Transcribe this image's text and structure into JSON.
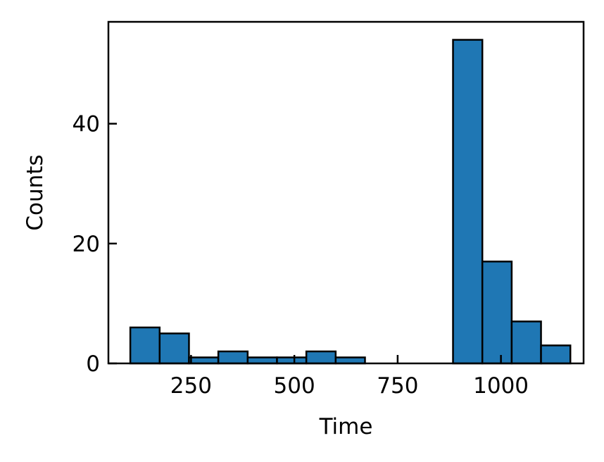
{
  "chart_data": {
    "type": "bar",
    "subtype": "histogram",
    "title": "",
    "xlabel": "Time",
    "ylabel": "Counts",
    "xlim": [
      50,
      1200
    ],
    "ylim": [
      0,
      57
    ],
    "x_ticks": [
      {
        "value": 250,
        "label": "250"
      },
      {
        "value": 500,
        "label": "500"
      },
      {
        "value": 750,
        "label": "750"
      },
      {
        "value": 1000,
        "label": "1000"
      }
    ],
    "y_ticks": [
      {
        "value": 0,
        "label": "0"
      },
      {
        "value": 20,
        "label": "20"
      },
      {
        "value": 40,
        "label": "40"
      }
    ],
    "bins": [
      {
        "x0": 103,
        "x1": 174,
        "count": 6
      },
      {
        "x0": 174,
        "x1": 245,
        "count": 5
      },
      {
        "x0": 245,
        "x1": 316,
        "count": 1
      },
      {
        "x0": 316,
        "x1": 387,
        "count": 2
      },
      {
        "x0": 387,
        "x1": 458,
        "count": 1
      },
      {
        "x0": 458,
        "x1": 529,
        "count": 1
      },
      {
        "x0": 529,
        "x1": 600,
        "count": 2
      },
      {
        "x0": 600,
        "x1": 671,
        "count": 1
      },
      {
        "x0": 671,
        "x1": 742,
        "count": 0
      },
      {
        "x0": 742,
        "x1": 813,
        "count": 0
      },
      {
        "x0": 813,
        "x1": 884,
        "count": 0
      },
      {
        "x0": 884,
        "x1": 955,
        "count": 54
      },
      {
        "x0": 955,
        "x1": 1026,
        "count": 17
      },
      {
        "x0": 1026,
        "x1": 1097,
        "count": 7
      },
      {
        "x0": 1097,
        "x1": 1168,
        "count": 3
      }
    ],
    "bar_color": "#1f77b4",
    "edge_color": "#000000",
    "grid": false,
    "legend": "none"
  }
}
